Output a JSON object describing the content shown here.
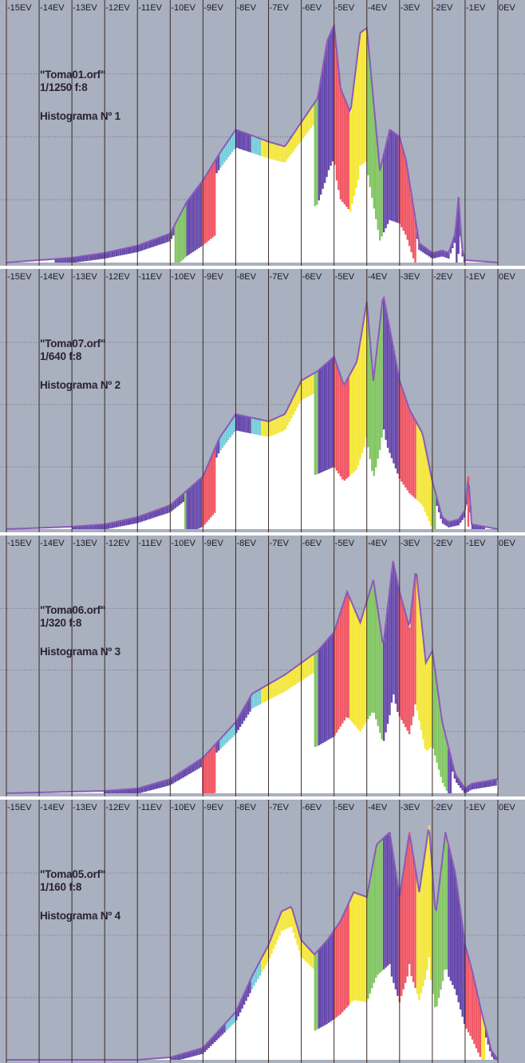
{
  "figure": {
    "ev_ticks": [
      "-15EV",
      "-14EV",
      "-13EV",
      "-12EV",
      "-11EV",
      "-10EV",
      "-9EV",
      "-8EV",
      "-7EV",
      "-6EV",
      "-5EV",
      "-4EV",
      "-3EV",
      "-2EV",
      "-1EV",
      "0EV"
    ],
    "colors": {
      "background": "#a9b0bf",
      "grid": "#3a2a24",
      "white_area": "#ffffff",
      "blue": "#5a3aa6",
      "violet": "#8a5ab8",
      "red": "#f04a5a",
      "yellow": "#f4e62a",
      "green": "#7ac25a",
      "cyan": "#6cc8d4"
    }
  },
  "chart_data": [
    {
      "type": "area",
      "title": "Histograma Nº 1",
      "file": "\"Toma01.orf\"",
      "exposure": "1/1250 f:8",
      "note_lines": [
        "\"Toma01.orf\"",
        "1/1250 f:8",
        "Histograma Nº 1"
      ],
      "x_ticks": [
        "-15EV",
        "-14EV",
        "-13EV",
        "-12EV",
        "-11EV",
        "-10EV",
        "-9EV",
        "-8EV",
        "-7EV",
        "-6EV",
        "-5EV",
        "-4EV",
        "-3EV",
        "-2EV",
        "-1EV",
        "0EV"
      ],
      "xlim": [
        -15,
        0
      ],
      "ylim": [
        0,
        1
      ],
      "series": [
        {
          "x": [
            -15,
            -13,
            -12,
            -11,
            -10,
            -9.5,
            -9,
            -8.5,
            -8,
            -7,
            -6.5,
            -6,
            -5.5,
            -5.2,
            -5,
            -4.8,
            -4.5,
            -4.2,
            -4,
            -3.6,
            -3.3,
            -3,
            -2.8,
            -2.6,
            -2.4,
            -2,
            -1.7,
            -1.5,
            -1.3,
            -1.2,
            -1.1,
            -1,
            0
          ],
          "y": [
            0,
            0.02,
            0.04,
            0.07,
            0.12,
            0.25,
            0.34,
            0.45,
            0.55,
            0.5,
            0.48,
            0.58,
            0.68,
            0.92,
            0.98,
            0.72,
            0.62,
            0.95,
            0.97,
            0.38,
            0.55,
            0.52,
            0.42,
            0.25,
            0.08,
            0.04,
            0.05,
            0.04,
            0.12,
            0.27,
            0.06,
            0.01,
            0
          ]
        }
      ]
    },
    {
      "type": "area",
      "title": "Histograma Nº 2",
      "file": "\"Toma07.orf\"",
      "exposure": "1/640 f:8",
      "note_lines": [
        "\"Toma07.orf\"",
        "1/640 f:8",
        "Histograma Nº 2"
      ],
      "x_ticks": [
        "-15EV",
        "-14EV",
        "-13EV",
        "-12EV",
        "-11EV",
        "-10EV",
        "-9EV",
        "-8EV",
        "-7EV",
        "-6EV",
        "-5EV",
        "-4EV",
        "-3EV",
        "-2EV",
        "-1EV",
        "0EV"
      ],
      "xlim": [
        -15,
        0
      ],
      "ylim": [
        0,
        1
      ],
      "series": [
        {
          "x": [
            -15,
            -13,
            -12,
            -11,
            -10,
            -9,
            -8.5,
            -8,
            -7,
            -6.5,
            -6,
            -5.5,
            -5,
            -4.7,
            -4.3,
            -4,
            -3.8,
            -3.5,
            -3,
            -2.7,
            -2.3,
            -2,
            -1.7,
            -1.5,
            -1.2,
            -1,
            -0.9,
            -0.8,
            0
          ],
          "y": [
            0,
            0.01,
            0.02,
            0.05,
            0.1,
            0.22,
            0.38,
            0.48,
            0.45,
            0.48,
            0.62,
            0.66,
            0.72,
            0.6,
            0.7,
            0.95,
            0.62,
            0.98,
            0.62,
            0.5,
            0.4,
            0.2,
            0.05,
            0.03,
            0.04,
            0.08,
            0.22,
            0.02,
            0
          ]
        }
      ]
    },
    {
      "type": "area",
      "title": "Histograma Nº 3",
      "file": "\"Toma06.orf\"",
      "exposure": "1/320 f:8",
      "note_lines": [
        "\"Toma06.orf\"",
        "1/320 f:8",
        "Histograma Nº 3"
      ],
      "x_ticks": [
        "-15EV",
        "-14EV",
        "-13EV",
        "-12EV",
        "-11EV",
        "-10EV",
        "-9EV",
        "-8EV",
        "-7EV",
        "-6EV",
        "-5EV",
        "-4EV",
        "-3EV",
        "-2EV",
        "-1EV",
        "0EV"
      ],
      "xlim": [
        -15,
        0
      ],
      "ylim": [
        0,
        1
      ],
      "series": [
        {
          "x": [
            -15,
            -12,
            -11,
            -10,
            -9,
            -8,
            -7.5,
            -7,
            -6.5,
            -6,
            -5.5,
            -5,
            -4.6,
            -4.2,
            -3.8,
            -3.5,
            -3.2,
            -3,
            -2.7,
            -2.5,
            -2.2,
            -2,
            -1.7,
            -1.3,
            -1,
            -0.8,
            0
          ],
          "y": [
            0,
            0.01,
            0.02,
            0.06,
            0.15,
            0.3,
            0.42,
            0.46,
            0.5,
            0.55,
            0.6,
            0.68,
            0.85,
            0.72,
            0.9,
            0.62,
            0.98,
            0.85,
            0.7,
            0.95,
            0.55,
            0.6,
            0.3,
            0.08,
            0.02,
            0.04,
            0.06
          ]
        }
      ]
    },
    {
      "type": "area",
      "title": "Histograma Nº 4",
      "file": "\"Toma05.orf\"",
      "exposure": "1/160 f:8",
      "note_lines": [
        "\"Toma05.orf\"",
        "1/160 f:8",
        "Histograma Nº 4"
      ],
      "x_ticks": [
        "-15EV",
        "-14EV",
        "-13EV",
        "-12EV",
        "-11EV",
        "-10EV",
        "-9EV",
        "-8EV",
        "-7EV",
        "-6EV",
        "-5EV",
        "-4EV",
        "-3EV",
        "-2EV",
        "-1EV",
        "0EV"
      ],
      "xlim": [
        -15,
        0
      ],
      "ylim": [
        0,
        1
      ],
      "series": [
        {
          "x": [
            -15,
            -11,
            -10,
            -9,
            -8,
            -7.5,
            -7,
            -6.6,
            -6.3,
            -6,
            -5.6,
            -5.2,
            -4.8,
            -4.4,
            -4,
            -3.7,
            -3.3,
            -3,
            -2.7,
            -2.4,
            -2.1,
            -1.9,
            -1.6,
            -1.3,
            -1,
            -0.8,
            -0.5,
            -0.2,
            0
          ],
          "y": [
            0,
            0,
            0.01,
            0.05,
            0.2,
            0.35,
            0.48,
            0.62,
            0.64,
            0.5,
            0.44,
            0.5,
            0.58,
            0.7,
            0.68,
            0.9,
            0.95,
            0.68,
            0.95,
            0.7,
            0.98,
            0.6,
            0.95,
            0.78,
            0.48,
            0.38,
            0.2,
            0.04,
            0
          ]
        }
      ]
    }
  ]
}
